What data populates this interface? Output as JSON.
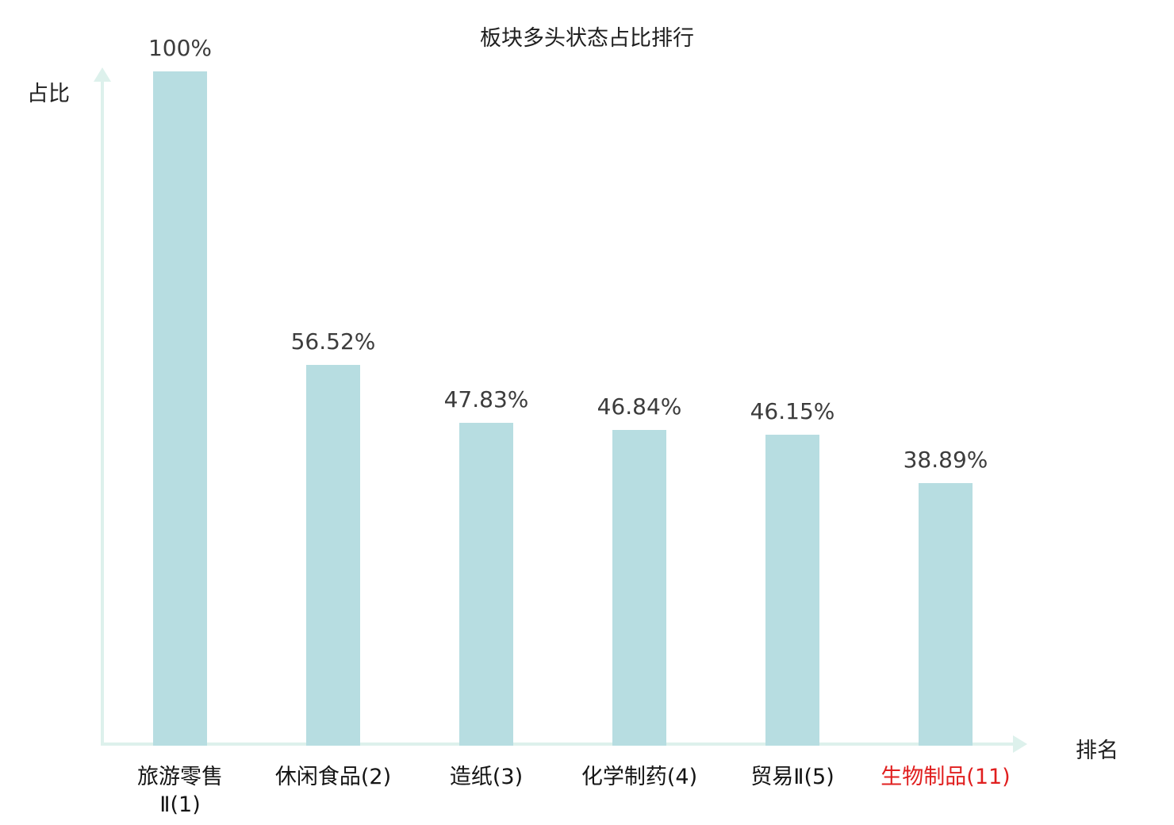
{
  "chart_data": {
    "type": "bar",
    "title": "板块多头状态占比排行",
    "xlabel": "排名",
    "ylabel": "占比",
    "categories": [
      "旅游零售\nⅡ(1)",
      "休闲食品(2)",
      "造纸(3)",
      "化学制药(4)",
      "贸易Ⅱ(5)",
      "生物制品(11)"
    ],
    "values": [
      100,
      56.52,
      47.83,
      46.84,
      46.15,
      38.89
    ],
    "value_labels": [
      "100%",
      "56.52%",
      "47.83%",
      "46.84%",
      "46.15%",
      "38.89%"
    ],
    "highlight_index": 5,
    "ylim": [
      0,
      100
    ],
    "grid": false,
    "legend": false,
    "colors": {
      "bar": "#b7dde1",
      "axis": "#ddf1ec",
      "value_label": "#3c3c3c",
      "category_label": "#141414",
      "highlight_category_label": "#e01f1f"
    }
  }
}
